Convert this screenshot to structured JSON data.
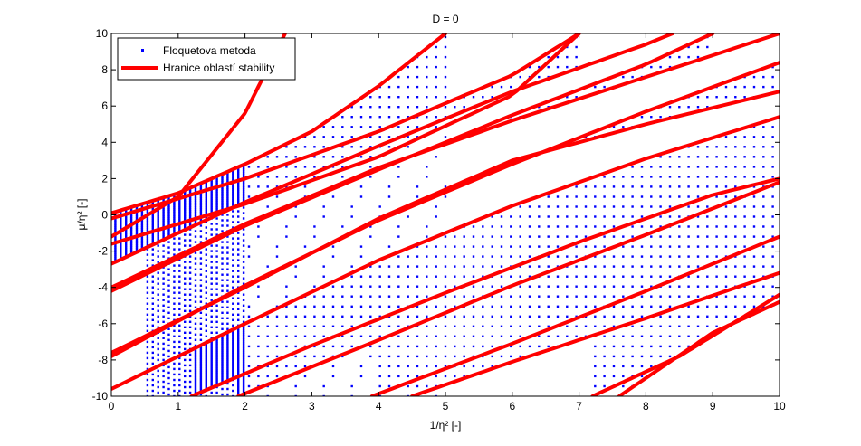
{
  "chart_data": {
    "type": "scatter",
    "title": "D = 0",
    "xlabel": "1/η² [-]",
    "ylabel": "μ/η² [-]",
    "xlim": [
      0,
      10
    ],
    "ylim": [
      -10,
      10
    ],
    "xticks": [
      0,
      1,
      2,
      3,
      4,
      5,
      6,
      7,
      8,
      9,
      10
    ],
    "yticks": [
      -10,
      -8,
      -6,
      -4,
      -2,
      0,
      2,
      4,
      6,
      8,
      10
    ],
    "tick_labels_x": [
      "0",
      "1",
      "2",
      "3",
      "4",
      "5",
      "6",
      "7",
      "8",
      "9",
      "10"
    ],
    "tick_labels_y": [
      "-10",
      "-8",
      "-6",
      "-4",
      "-2",
      "0",
      "2",
      "4",
      "6",
      "8",
      "10"
    ],
    "grid": false,
    "legend_position": "top-left",
    "series": [
      {
        "name": "Floquetova metoda",
        "style": "points",
        "color": "#0000ff",
        "description_of_region": "unstable region points filling area between paired boundary curves"
      },
      {
        "name": "Hranice oblastí stability",
        "style": "line",
        "color": "#ff0000",
        "curves": [
          {
            "x": [
              0,
              1,
              2,
              2.6
            ],
            "y": [
              -1.2,
              1.0,
              5.6,
              10
            ]
          },
          {
            "x": [
              0,
              1,
              2,
              3,
              4,
              5
            ],
            "y": [
              0.1,
              1.2,
              2.8,
              4.6,
              7.1,
              10
            ]
          },
          {
            "x": [
              0,
              2,
              4,
              6,
              7.0
            ],
            "y": [
              -0.2,
              2.0,
              4.6,
              7.7,
              10
            ]
          },
          {
            "x": [
              0,
              2,
              4,
              6,
              7.0
            ],
            "y": [
              -1.6,
              0.6,
              3.2,
              6.6,
              10
            ]
          },
          {
            "x": [
              0,
              2,
              4,
              6,
              8,
              8.4
            ],
            "y": [
              -2.7,
              0.7,
              3.8,
              6.8,
              9.4,
              10
            ]
          },
          {
            "x": [
              0,
              2,
              4,
              6,
              8,
              9.0
            ],
            "y": [
              -4.2,
              -0.6,
              2.5,
              5.5,
              8.3,
              10
            ]
          },
          {
            "x": [
              0,
              2,
              4,
              6,
              8,
              10
            ],
            "y": [
              -4.0,
              -0.5,
              2.6,
              5.2,
              7.6,
              10
            ]
          },
          {
            "x": [
              0,
              2,
              4,
              6,
              8,
              10
            ],
            "y": [
              -7.8,
              -3.9,
              -0.3,
              2.8,
              5.7,
              8.4
            ]
          },
          {
            "x": [
              0,
              2,
              4,
              6,
              8,
              10
            ],
            "y": [
              -7.6,
              -4.0,
              -0.2,
              3.0,
              5.0,
              6.8
            ]
          },
          {
            "x": [
              0,
              2,
              4,
              6,
              8,
              10
            ],
            "y": [
              -9.6,
              -6.0,
              -2.5,
              0.5,
              3.1,
              5.4
            ]
          },
          {
            "x": [
              1.2,
              3,
              5,
              7,
              9,
              10
            ],
            "y": [
              -10,
              -7.2,
              -4.3,
              -1.5,
              1.1,
              2.0
            ]
          },
          {
            "x": [
              1.9,
              4,
              6,
              8,
              10
            ],
            "y": [
              -10,
              -6.9,
              -3.9,
              -1.1,
              1.8
            ]
          },
          {
            "x": [
              3.9,
              6,
              8,
              10
            ],
            "y": [
              -10,
              -7.1,
              -4.2,
              -1.2
            ]
          },
          {
            "x": [
              4.5,
              6,
              8,
              10
            ],
            "y": [
              -10,
              -8.1,
              -5.7,
              -3.2
            ]
          },
          {
            "x": [
              7.2,
              8.5,
              10
            ],
            "y": [
              -10,
              -7.8,
              -4.4
            ]
          },
          {
            "x": [
              7.6,
              9,
              10
            ],
            "y": [
              -10,
              -6.5,
              -4.8
            ]
          }
        ]
      }
    ]
  }
}
